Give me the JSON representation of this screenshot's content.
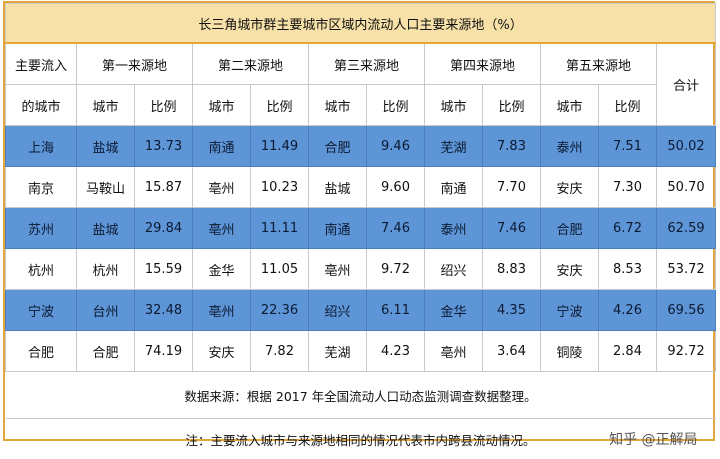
{
  "title": "长三角城市群主要城市区域内流动人口主要来源地（%）",
  "header": {
    "col0_line1": "主要流入",
    "col0_line2": "的城市",
    "groups": [
      "第一来源地",
      "第二来源地",
      "第三来源地",
      "第四来源地",
      "第五来源地"
    ],
    "sub_city": "城市",
    "sub_ratio": "比例",
    "total": "合计"
  },
  "rows": [
    {
      "city": "上海",
      "s": [
        [
          "盐城",
          "13.73"
        ],
        [
          "南通",
          "11.49"
        ],
        [
          "合肥",
          "9.46"
        ],
        [
          "芜湖",
          "7.83"
        ],
        [
          "泰州",
          "7.51"
        ]
      ],
      "total": "50.02",
      "highlight": true
    },
    {
      "city": "南京",
      "s": [
        [
          "马鞍山",
          "15.87"
        ],
        [
          "亳州",
          "10.23"
        ],
        [
          "盐城",
          "9.60"
        ],
        [
          "南通",
          "7.70"
        ],
        [
          "安庆",
          "7.30"
        ]
      ],
      "total": "50.70",
      "highlight": false
    },
    {
      "city": "苏州",
      "s": [
        [
          "盐城",
          "29.84"
        ],
        [
          "亳州",
          "11.11"
        ],
        [
          "南通",
          "7.46"
        ],
        [
          "泰州",
          "7.46"
        ],
        [
          "合肥",
          "6.72"
        ]
      ],
      "total": "62.59",
      "highlight": true
    },
    {
      "city": "杭州",
      "s": [
        [
          "杭州",
          "15.59"
        ],
        [
          "金华",
          "11.05"
        ],
        [
          "亳州",
          "9.72"
        ],
        [
          "绍兴",
          "8.83"
        ],
        [
          "安庆",
          "8.53"
        ]
      ],
      "total": "53.72",
      "highlight": false
    },
    {
      "city": "宁波",
      "s": [
        [
          "台州",
          "32.48"
        ],
        [
          "亳州",
          "22.36"
        ],
        [
          "绍兴",
          "6.11"
        ],
        [
          "金华",
          "4.35"
        ],
        [
          "宁波",
          "4.26"
        ]
      ],
      "total": "69.56",
      "highlight": true
    },
    {
      "city": "合肥",
      "s": [
        [
          "合肥",
          "74.19"
        ],
        [
          "安庆",
          "7.82"
        ],
        [
          "芜湖",
          "4.23"
        ],
        [
          "亳州",
          "3.64"
        ],
        [
          "铜陵",
          "2.84"
        ]
      ],
      "total": "92.72",
      "highlight": false
    }
  ],
  "notes": {
    "source": "数据来源：根据 2017 年全国流动人口动态监测调查数据整理。",
    "note": "注：主要流入城市与来源地相同的情况代表市内跨县流动情况。"
  },
  "watermark": "知乎 @正解局"
}
